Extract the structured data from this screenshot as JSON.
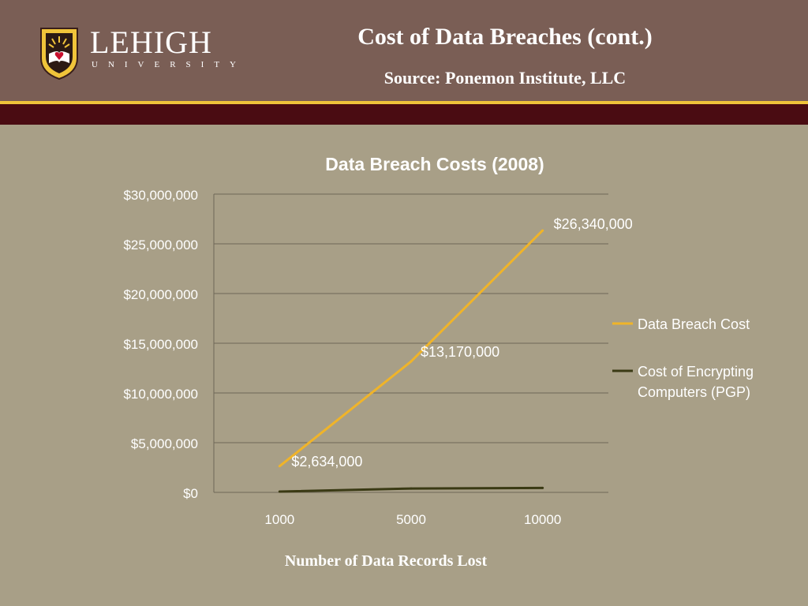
{
  "header": {
    "logo_word": "LEHIGH",
    "logo_subword": "UNIVERSITY",
    "title": "Cost of Data Breaches (cont.)",
    "source": "Source: Ponemon Institute, LLC"
  },
  "colors": {
    "header_bg": "#7a5e55",
    "accent_gold": "#f0c43a",
    "band_dark": "#4a0c12",
    "slide_bg": "#a89f87",
    "series_breach": "#f0b429",
    "series_encrypt": "#3a3a14"
  },
  "x_caption": "Number of Data Records Lost",
  "chart_data": {
    "type": "line",
    "title": "Data Breach Costs (2008)",
    "categories": [
      "1000",
      "5000",
      "10000"
    ],
    "y_ticks": [
      "$0",
      "$5,000,000",
      "$10,000,000",
      "$15,000,000",
      "$20,000,000",
      "$25,000,000",
      "$30,000,000"
    ],
    "ylim": [
      0,
      30000000
    ],
    "grid": true,
    "legend_position": "right",
    "series": [
      {
        "name": "Data Breach Cost",
        "values": [
          2634000,
          13170000,
          26340000
        ],
        "labels": [
          "$2,634,000",
          "$13,170,000",
          "$26,340,000"
        ],
        "color": "#f0b429"
      },
      {
        "name": "Cost of Encrypting Computers (PGP)",
        "values": [
          78000,
          390000,
          450000
        ],
        "color": "#3a3a14"
      }
    ]
  }
}
